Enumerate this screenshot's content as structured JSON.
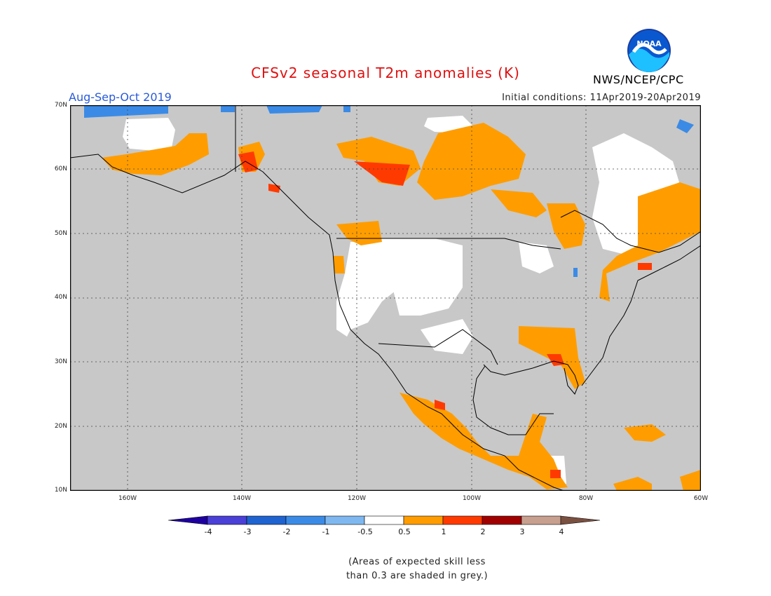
{
  "title": "CFSv2 seasonal T2m anomalies (K)",
  "period": "Aug-Sep-Oct 2019",
  "initial_conditions": "Initial conditions: 11Apr2019-20Apr2019",
  "agency": "NWS/NCEP/CPC",
  "logo_text": "NOAA",
  "lat_labels": [
    "70N",
    "60N",
    "50N",
    "40N",
    "30N",
    "20N",
    "10N"
  ],
  "lon_labels": [
    "160W",
    "140W",
    "120W",
    "100W",
    "80W",
    "60W"
  ],
  "colorbar": {
    "labels": [
      "-4",
      "-3",
      "-2",
      "-1",
      "-0.5",
      "0.5",
      "1",
      "2",
      "3",
      "4"
    ],
    "colors": [
      "#1e00a0",
      "#4a3fd6",
      "#1f63d0",
      "#3b8be6",
      "#7fb8f0",
      "#ffffff",
      "#ff9d00",
      "#ff3a00",
      "#a00000",
      "#c8a090",
      "#7a5040"
    ]
  },
  "note": [
    "(Areas of expected skill less",
    "than 0.3 are shaded in grey.)"
  ],
  "colors": {
    "land_grey": "#c8c8c8",
    "ocean_grey": "#c8c8c8",
    "warm1": "#ff9d00",
    "warm2": "#ff3a00",
    "cool1": "#3b8be6"
  }
}
